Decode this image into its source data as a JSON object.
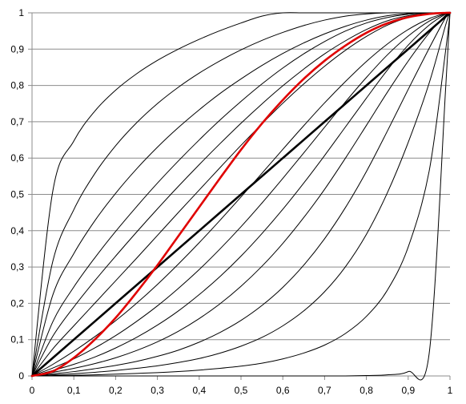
{
  "chart_data": {
    "type": "line",
    "title": "",
    "xlabel": "",
    "ylabel": "",
    "xlim": [
      0,
      1
    ],
    "ylim": [
      0,
      1
    ],
    "grid": "horizontal",
    "legend": "none",
    "x_tick_labels": [
      "0",
      "0,1",
      "0,2",
      "0,3",
      "0,4",
      "0,5",
      "0,6",
      "0,7",
      "0,8",
      "0,9",
      "1"
    ],
    "y_tick_labels": [
      "0",
      "0,1",
      "0,2",
      "0,3",
      "0,4",
      "0,5",
      "0,6",
      "0,7",
      "0,8",
      "0,9",
      "1"
    ],
    "x": [
      0,
      0.05,
      0.1,
      0.15,
      0.2,
      0.25,
      0.3,
      0.35,
      0.4,
      0.45,
      0.5,
      0.55,
      0.6,
      0.65,
      0.7,
      0.75,
      0.8,
      0.85,
      0.9,
      0.95,
      0.99,
      1
    ],
    "series": [
      {
        "color": "#000000",
        "width": 1,
        "values": [
          0,
          0.511,
          0.647,
          0.729,
          0.787,
          0.832,
          0.869,
          0.9,
          0.927,
          0.951,
          0.972,
          0.991,
          1.0,
          1.0,
          1.0,
          1.0,
          1.0,
          1.0,
          1.0,
          1.0,
          1.0,
          1
        ]
      },
      {
        "color": "#000000",
        "width": 1,
        "values": [
          0,
          0.317,
          0.458,
          0.557,
          0.634,
          0.697,
          0.75,
          0.795,
          0.834,
          0.868,
          0.898,
          0.924,
          0.946,
          0.965,
          0.98,
          0.991,
          0.997,
          1.0,
          1.0,
          1.0,
          1.0,
          1
        ]
      },
      {
        "color": "#000000",
        "width": 1,
        "values": [
          0,
          0.224,
          0.337,
          0.427,
          0.503,
          0.57,
          0.63,
          0.684,
          0.733,
          0.778,
          0.818,
          0.855,
          0.888,
          0.917,
          0.942,
          0.963,
          0.98,
          0.992,
          0.998,
          1.0,
          1.0,
          1
        ]
      },
      {
        "color": "#000000",
        "width": 1,
        "values": [
          0,
          0.15,
          0.245,
          0.325,
          0.398,
          0.466,
          0.531,
          0.592,
          0.65,
          0.705,
          0.756,
          0.804,
          0.848,
          0.887,
          0.921,
          0.95,
          0.972,
          0.987,
          0.996,
          1.0,
          1.0,
          1
        ]
      },
      {
        "color": "#000000",
        "width": 1,
        "values": [
          0,
          0.11,
          0.19,
          0.262,
          0.33,
          0.396,
          0.46,
          0.522,
          0.582,
          0.64,
          0.696,
          0.749,
          0.799,
          0.845,
          0.887,
          0.923,
          0.954,
          0.978,
          0.992,
          0.999,
          1.0,
          1
        ]
      },
      {
        "color": "#000000",
        "width": 1,
        "values": [
          0,
          0.075,
          0.138,
          0.2,
          0.262,
          0.324,
          0.387,
          0.45,
          0.512,
          0.574,
          0.635,
          0.694,
          0.751,
          0.804,
          0.853,
          0.897,
          0.935,
          0.966,
          0.987,
          0.998,
          1.0,
          1
        ]
      },
      {
        "color": "#000000",
        "width": 2.6,
        "values": [
          0,
          0.05,
          0.1,
          0.15,
          0.2,
          0.25,
          0.3,
          0.35,
          0.4,
          0.45,
          0.5,
          0.55,
          0.6,
          0.65,
          0.7,
          0.75,
          0.8,
          0.85,
          0.9,
          0.95,
          0.99,
          1
        ]
      },
      {
        "color": "#000000",
        "width": 1,
        "values": [
          0,
          0.032,
          0.068,
          0.108,
          0.152,
          0.2,
          0.252,
          0.308,
          0.367,
          0.429,
          0.493,
          0.558,
          0.624,
          0.689,
          0.752,
          0.811,
          0.866,
          0.914,
          0.954,
          0.984,
          0.999,
          1
        ]
      },
      {
        "color": "#000000",
        "width": 1,
        "values": [
          0,
          0.022,
          0.047,
          0.077,
          0.111,
          0.15,
          0.193,
          0.241,
          0.293,
          0.35,
          0.411,
          0.476,
          0.544,
          0.614,
          0.685,
          0.755,
          0.822,
          0.884,
          0.936,
          0.977,
          0.998,
          1
        ]
      },
      {
        "color": "#000000",
        "width": 1,
        "values": [
          0,
          0.015,
          0.032,
          0.052,
          0.077,
          0.106,
          0.14,
          0.179,
          0.224,
          0.274,
          0.33,
          0.392,
          0.459,
          0.531,
          0.607,
          0.686,
          0.765,
          0.842,
          0.911,
          0.966,
          0.997,
          1
        ]
      },
      {
        "color": "#000000",
        "width": 1,
        "values": [
          0,
          0.01,
          0.021,
          0.034,
          0.05,
          0.07,
          0.094,
          0.123,
          0.158,
          0.199,
          0.247,
          0.302,
          0.365,
          0.436,
          0.514,
          0.6,
          0.69,
          0.781,
          0.867,
          0.944,
          0.994,
          1
        ]
      },
      {
        "color": "#000000",
        "width": 1,
        "values": [
          0,
          0.006,
          0.012,
          0.02,
          0.029,
          0.04,
          0.054,
          0.071,
          0.093,
          0.12,
          0.153,
          0.194,
          0.244,
          0.305,
          0.378,
          0.464,
          0.563,
          0.674,
          0.789,
          0.902,
          0.988,
          1
        ]
      },
      {
        "color": "#000000",
        "width": 1,
        "values": [
          0,
          0.003,
          0.006,
          0.01,
          0.015,
          0.021,
          0.028,
          0.037,
          0.048,
          0.063,
          0.082,
          0.106,
          0.138,
          0.179,
          0.232,
          0.301,
          0.39,
          0.504,
          0.643,
          0.806,
          0.968,
          1
        ]
      },
      {
        "color": "#000000",
        "width": 1,
        "values": [
          0,
          0.001,
          0.002,
          0.003,
          0.005,
          0.007,
          0.009,
          0.012,
          0.016,
          0.021,
          0.027,
          0.035,
          0.047,
          0.063,
          0.085,
          0.117,
          0.164,
          0.236,
          0.355,
          0.563,
          0.9,
          1
        ]
      },
      {
        "color": "#000000",
        "width": 1,
        "values": [
          0,
          0.0,
          0.0,
          0.0,
          0.0,
          0.0,
          0.0,
          0.0,
          0.0,
          0.0,
          0.0,
          0.0,
          0.0,
          0.0,
          0.0,
          0.0,
          0.001,
          0.003,
          0.012,
          0.06,
          0.8,
          1
        ]
      },
      {
        "color": "#e00000",
        "width": 2.6,
        "values": [
          0,
          0.013,
          0.05,
          0.1,
          0.16,
          0.23,
          0.305,
          0.385,
          0.465,
          0.545,
          0.623,
          0.695,
          0.76,
          0.818,
          0.868,
          0.91,
          0.945,
          0.971,
          0.988,
          0.997,
          1.0,
          1
        ]
      }
    ]
  }
}
